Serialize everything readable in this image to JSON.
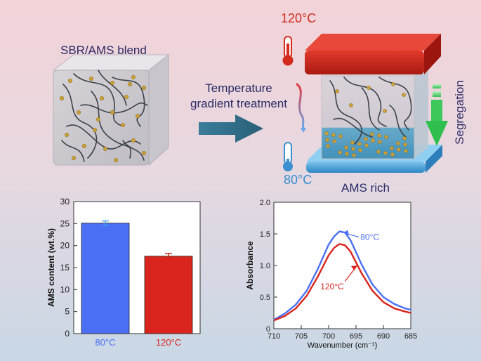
{
  "labels": {
    "blend": "SBR/AMS blend",
    "treatment_line1": "Temperature",
    "treatment_line2": "gradient treatment",
    "hot_temp": "120°C",
    "cold_temp": "80°C",
    "segregation": "Segregation",
    "ams_rich": "AMS rich"
  },
  "colors": {
    "hot": "#d42a1e",
    "cold": "#3a8fcf",
    "arrow": "#2f6b86",
    "segregation_arrow": "#3cc85a",
    "blue_series": "#4a6ff5",
    "red_series": "#d9251d",
    "particle": "#c9a13a"
  },
  "chart_data": [
    {
      "type": "bar",
      "categories": [
        "80°C",
        "120°C"
      ],
      "values": [
        25.1,
        17.6
      ],
      "errors": [
        0.5,
        0.6
      ],
      "colors": [
        "#4a6ff5",
        "#d9251d"
      ],
      "ylabel": "AMS content (wt.%)",
      "ylim": [
        0,
        30
      ],
      "yticks": [
        0,
        5,
        10,
        15,
        20,
        25,
        30
      ]
    },
    {
      "type": "line",
      "xlabel": "Wavenumber (cm⁻¹)",
      "ylabel": "Absorbance",
      "xlim": [
        710,
        685
      ],
      "ylim": [
        0,
        2.0
      ],
      "xticks": [
        710,
        705,
        700,
        695,
        690,
        685
      ],
      "yticks": [
        0,
        0.5,
        1.0,
        1.5,
        2.0
      ],
      "series": [
        {
          "name": "80°C",
          "color": "#4a6ff5",
          "x": [
            710,
            708,
            706,
            704,
            702,
            700,
            699,
            698,
            697,
            696,
            694,
            692,
            690,
            688,
            686,
            685
          ],
          "y": [
            0.14,
            0.24,
            0.38,
            0.6,
            0.94,
            1.33,
            1.46,
            1.54,
            1.52,
            1.4,
            1.02,
            0.7,
            0.5,
            0.39,
            0.32,
            0.3
          ]
        },
        {
          "name": "120°C",
          "color": "#d9251d",
          "x": [
            710,
            708,
            706,
            704,
            702,
            700,
            699,
            698,
            697,
            696,
            694,
            692,
            690,
            688,
            686,
            685
          ],
          "y": [
            0.13,
            0.2,
            0.32,
            0.52,
            0.82,
            1.16,
            1.28,
            1.34,
            1.32,
            1.22,
            0.88,
            0.6,
            0.42,
            0.32,
            0.27,
            0.25
          ]
        }
      ]
    }
  ]
}
